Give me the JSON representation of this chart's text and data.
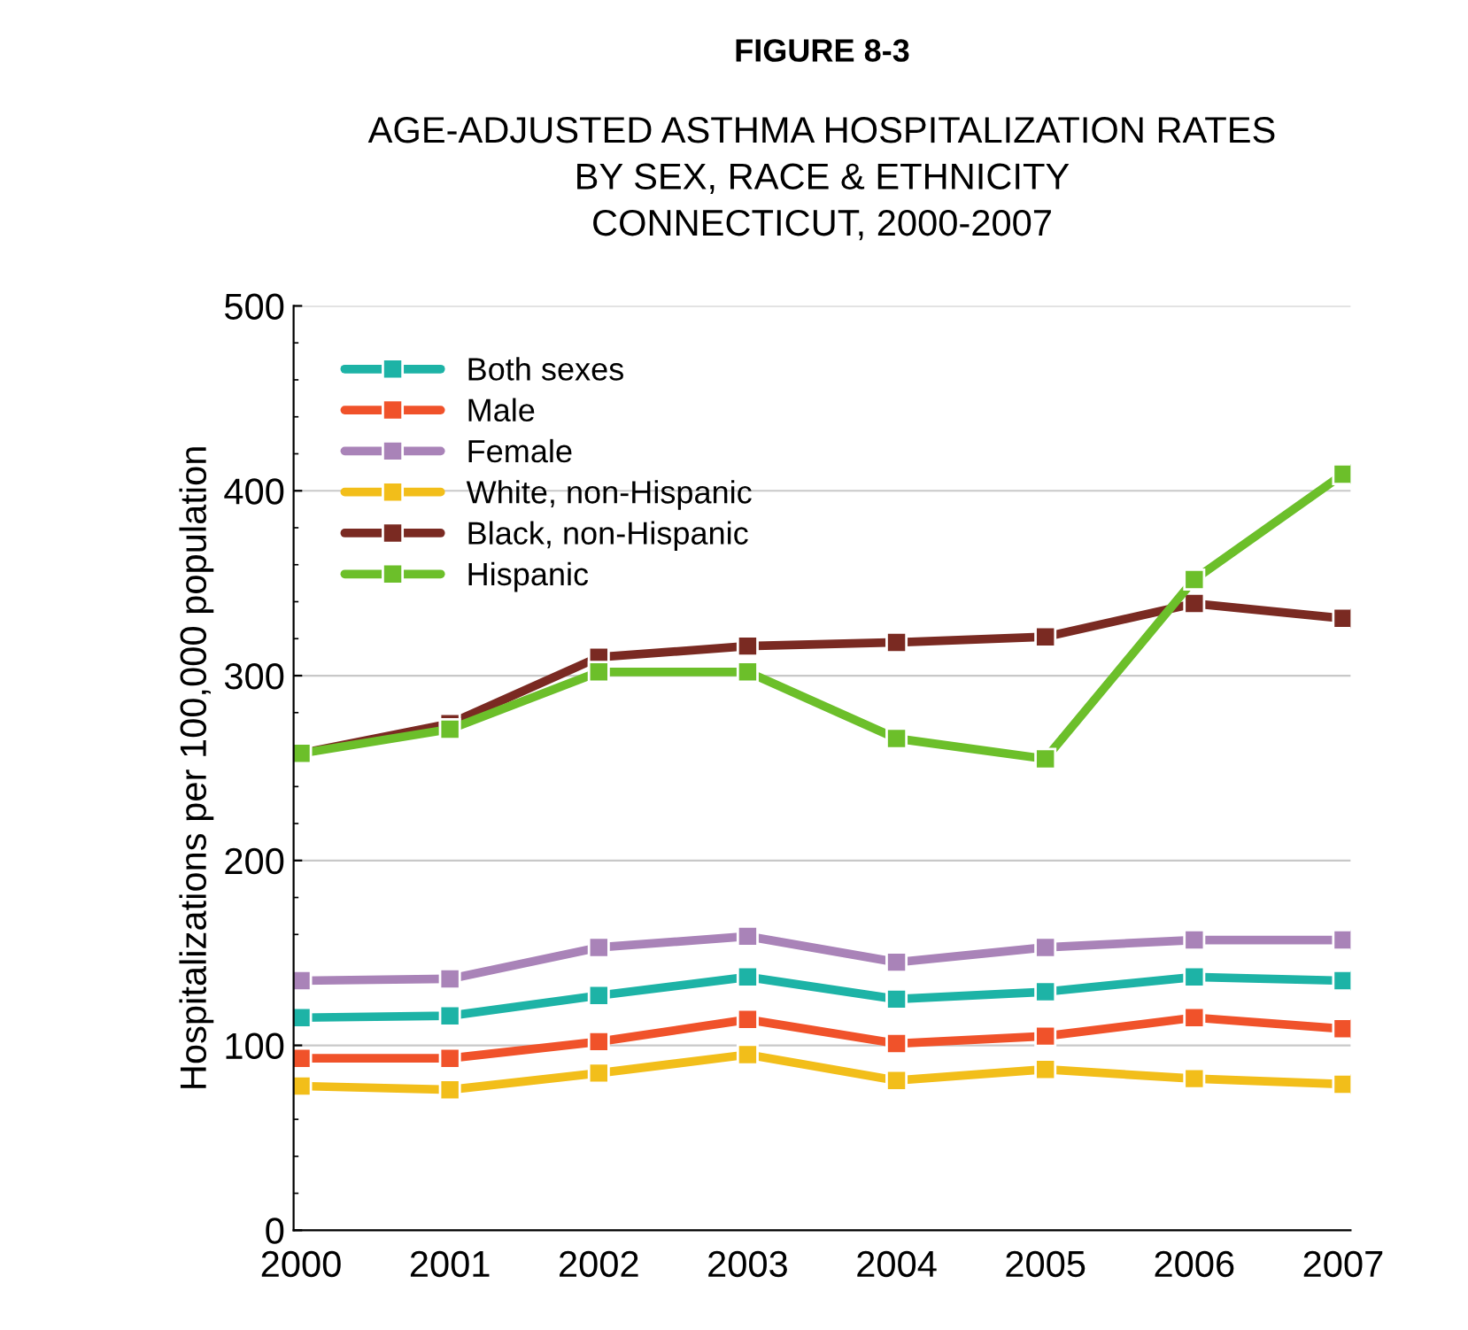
{
  "chart_data": {
    "type": "line",
    "title": "FIGURE 8-3",
    "subtitle": "AGE-ADJUSTED ASTHMA HOSPITALIZATION RATES\nBY SEX, RACE & ETHNICITY\nCONNECTICUT, 2000-2007",
    "ylabel": "Hospitalizations per 100,000 population",
    "categories": [
      "2000",
      "2001",
      "2002",
      "2003",
      "2004",
      "2005",
      "2006",
      "2007"
    ],
    "ylim": [
      0,
      500
    ],
    "yticks": [
      0,
      100,
      200,
      300,
      400,
      500
    ],
    "grid": "y",
    "legend": "top left",
    "marker": "square",
    "line_style": "solid",
    "series": [
      {
        "name": "Both sexes",
        "color": "#1db3a6",
        "values": [
          115,
          116,
          127,
          137,
          125,
          129,
          137,
          135
        ]
      },
      {
        "name": "Male",
        "color": "#f0522a",
        "values": [
          93,
          93,
          102,
          114,
          101,
          105,
          115,
          109
        ]
      },
      {
        "name": "Female",
        "color": "#a983b8",
        "values": [
          135,
          136,
          153,
          159,
          145,
          153,
          157,
          157
        ]
      },
      {
        "name": "White, non-Hispanic",
        "color": "#f2be1a",
        "values": [
          78,
          76,
          85,
          95,
          81,
          87,
          82,
          79
        ]
      },
      {
        "name": "Black, non-Hispanic",
        "color": "#7a2a22",
        "values": [
          258,
          274,
          310,
          316,
          318,
          321,
          339,
          331
        ]
      },
      {
        "name": "Hispanic",
        "color": "#6cbf2a",
        "values": [
          258,
          271,
          302,
          302,
          266,
          255,
          352,
          409
        ]
      }
    ]
  }
}
